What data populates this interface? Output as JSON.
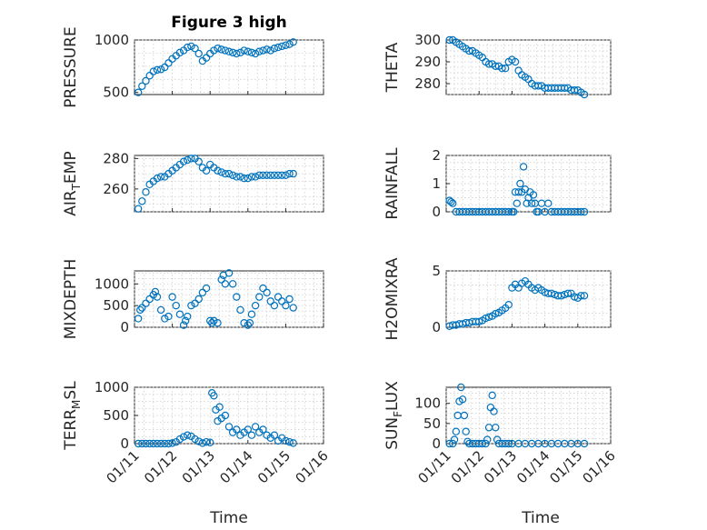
{
  "figure": {
    "title": "Figure 3 high",
    "marker_color": "#0072BD",
    "x_axis_label": "Time"
  },
  "chart_data": [
    {
      "type": "scatter",
      "ylabel": "PRESSURE",
      "ylim": [
        480,
        1000
      ],
      "yticks": [
        500,
        1000
      ],
      "xlim": [
        0,
        5
      ],
      "xticks": [
        "01/11",
        "01/12",
        "01/13",
        "01/14",
        "01/15",
        "01/16"
      ],
      "x": [
        0.1,
        0.2,
        0.3,
        0.4,
        0.5,
        0.6,
        0.7,
        0.8,
        0.9,
        1.0,
        1.1,
        1.2,
        1.3,
        1.4,
        1.5,
        1.6,
        1.7,
        1.8,
        1.9,
        2.0,
        2.1,
        2.2,
        2.3,
        2.4,
        2.5,
        2.6,
        2.7,
        2.8,
        2.9,
        3.0,
        3.1,
        3.2,
        3.3,
        3.4,
        3.5,
        3.6,
        3.7,
        3.8,
        3.9,
        4.0,
        4.1,
        4.2
      ],
      "y": [
        500,
        560,
        610,
        660,
        700,
        715,
        720,
        740,
        780,
        820,
        850,
        880,
        900,
        930,
        940,
        920,
        870,
        800,
        830,
        870,
        900,
        920,
        910,
        900,
        890,
        880,
        870,
        880,
        900,
        890,
        880,
        870,
        890,
        900,
        910,
        900,
        920,
        930,
        940,
        950,
        960,
        980
      ]
    },
    {
      "type": "scatter",
      "ylabel": "THETA",
      "ylim": [
        275,
        300
      ],
      "yticks": [
        280,
        290,
        300
      ],
      "xlim": [
        0,
        5
      ],
      "xticks": [
        "01/11",
        "01/12",
        "01/13",
        "01/14",
        "01/15",
        "01/16"
      ],
      "x": [
        0.1,
        0.2,
        0.3,
        0.4,
        0.5,
        0.6,
        0.7,
        0.8,
        0.9,
        1.0,
        1.1,
        1.2,
        1.3,
        1.4,
        1.5,
        1.6,
        1.7,
        1.8,
        1.9,
        2.0,
        2.1,
        2.2,
        2.3,
        2.4,
        2.5,
        2.6,
        2.7,
        2.8,
        2.9,
        3.0,
        3.1,
        3.2,
        3.3,
        3.4,
        3.5,
        3.6,
        3.7,
        3.8,
        3.9,
        4.0,
        4.1,
        4.2
      ],
      "y": [
        300,
        300,
        299,
        298,
        297,
        296,
        295,
        295,
        294,
        293,
        292,
        290,
        289,
        289,
        288,
        288,
        287,
        287,
        290,
        291,
        290,
        286,
        284,
        283,
        282,
        280,
        279,
        279,
        279,
        278,
        278,
        278,
        278,
        278,
        278,
        278,
        278,
        277,
        277,
        277,
        276,
        275
      ]
    },
    {
      "type": "scatter",
      "ylabel": "AIR_TEMP",
      "ylim": [
        245,
        282
      ],
      "yticks": [
        260,
        280
      ],
      "xlim": [
        0,
        5
      ],
      "xticks": [
        "01/11",
        "01/12",
        "01/13",
        "01/14",
        "01/15",
        "01/16"
      ],
      "x": [
        0.1,
        0.2,
        0.3,
        0.4,
        0.5,
        0.6,
        0.7,
        0.8,
        0.9,
        1.0,
        1.1,
        1.2,
        1.3,
        1.4,
        1.5,
        1.6,
        1.7,
        1.8,
        1.9,
        2.0,
        2.1,
        2.2,
        2.3,
        2.4,
        2.5,
        2.6,
        2.7,
        2.8,
        2.9,
        3.0,
        3.1,
        3.2,
        3.3,
        3.4,
        3.5,
        3.6,
        3.7,
        3.8,
        3.9,
        4.0,
        4.1,
        4.2
      ],
      "y": [
        247,
        252,
        258,
        263,
        265,
        267,
        268,
        268,
        270,
        272,
        274,
        276,
        278,
        279,
        280,
        280,
        278,
        274,
        272,
        276,
        274,
        272,
        271,
        270,
        270,
        269,
        268,
        268,
        267,
        267,
        268,
        268,
        269,
        269,
        269,
        269,
        269,
        269,
        269,
        269,
        270,
        270
      ]
    },
    {
      "type": "scatter",
      "ylabel": "RAINFALL",
      "ylim": [
        0,
        2
      ],
      "yticks": [
        0,
        1,
        2
      ],
      "xlim": [
        0,
        5
      ],
      "xticks": [
        "01/11",
        "01/12",
        "01/13",
        "01/14",
        "01/15",
        "01/16"
      ],
      "x": [
        0.1,
        0.15,
        0.2,
        0.3,
        0.4,
        0.5,
        0.6,
        0.7,
        0.8,
        0.9,
        1.0,
        1.1,
        1.2,
        1.3,
        1.4,
        1.5,
        1.6,
        1.7,
        1.8,
        1.9,
        2.0,
        2.05,
        2.1,
        2.15,
        2.2,
        2.25,
        2.3,
        2.35,
        2.4,
        2.45,
        2.5,
        2.55,
        2.6,
        2.65,
        2.7,
        2.75,
        2.8,
        2.9,
        3.0,
        3.1,
        3.2,
        3.3,
        3.4,
        3.5,
        3.6,
        3.7,
        3.8,
        3.9,
        4.0,
        4.1,
        4.2
      ],
      "y": [
        0.4,
        0.35,
        0.3,
        0,
        0,
        0,
        0,
        0,
        0,
        0,
        0,
        0,
        0,
        0,
        0,
        0,
        0,
        0,
        0,
        0,
        0,
        0,
        0.7,
        0.3,
        0.7,
        1.0,
        0.7,
        1.6,
        0.8,
        0.3,
        0.5,
        0.7,
        0.3,
        0.6,
        0.3,
        0,
        0,
        0.3,
        0,
        0.3,
        0,
        0,
        0,
        0,
        0,
        0,
        0,
        0,
        0,
        0,
        0
      ]
    },
    {
      "type": "scatter",
      "ylabel": "MIXDEPTH",
      "ylim": [
        0,
        1300
      ],
      "yticks": [
        0,
        500,
        1000
      ],
      "xlim": [
        0,
        5
      ],
      "xticks": [
        "01/11",
        "01/12",
        "01/13",
        "01/14",
        "01/15",
        "01/16"
      ],
      "x": [
        0.1,
        0.15,
        0.2,
        0.3,
        0.4,
        0.5,
        0.55,
        0.6,
        0.7,
        0.8,
        0.9,
        1.0,
        1.1,
        1.2,
        1.3,
        1.35,
        1.4,
        1.5,
        1.6,
        1.7,
        1.8,
        1.9,
        2.0,
        2.05,
        2.1,
        2.2,
        2.3,
        2.35,
        2.4,
        2.5,
        2.6,
        2.7,
        2.8,
        2.9,
        3.0,
        3.05,
        3.1,
        3.2,
        3.3,
        3.4,
        3.5,
        3.6,
        3.7,
        3.8,
        3.9,
        4.0,
        4.1,
        4.2
      ],
      "y": [
        200,
        400,
        450,
        550,
        650,
        750,
        820,
        700,
        400,
        200,
        250,
        700,
        500,
        300,
        50,
        150,
        250,
        500,
        550,
        650,
        800,
        900,
        150,
        100,
        150,
        100,
        1100,
        1200,
        1000,
        1250,
        1000,
        700,
        400,
        100,
        50,
        100,
        300,
        500,
        700,
        900,
        800,
        600,
        500,
        700,
        600,
        500,
        650,
        450
      ]
    },
    {
      "type": "scatter",
      "ylabel": "H2OMIXRA",
      "ylim": [
        0,
        5
      ],
      "yticks": [
        0,
        5
      ],
      "xlim": [
        0,
        5
      ],
      "xticks": [
        "01/11",
        "01/12",
        "01/13",
        "01/14",
        "01/15",
        "01/16"
      ],
      "x": [
        0.1,
        0.2,
        0.3,
        0.4,
        0.5,
        0.6,
        0.7,
        0.8,
        0.9,
        1.0,
        1.1,
        1.2,
        1.3,
        1.4,
        1.5,
        1.6,
        1.7,
        1.8,
        1.9,
        2.0,
        2.1,
        2.2,
        2.3,
        2.4,
        2.5,
        2.6,
        2.7,
        2.8,
        2.9,
        3.0,
        3.1,
        3.2,
        3.3,
        3.4,
        3.5,
        3.6,
        3.7,
        3.8,
        3.9,
        4.0,
        4.1,
        4.2
      ],
      "y": [
        0.1,
        0.2,
        0.2,
        0.3,
        0.3,
        0.4,
        0.4,
        0.5,
        0.5,
        0.5,
        0.6,
        0.8,
        0.9,
        1.0,
        1.2,
        1.3,
        1.5,
        1.7,
        2.0,
        3.5,
        3.8,
        3.5,
        3.9,
        4.1,
        3.8,
        3.5,
        3.3,
        3.5,
        3.3,
        3.1,
        3.0,
        3.0,
        2.9,
        2.8,
        2.8,
        2.9,
        3.0,
        3.0,
        2.7,
        2.6,
        2.8,
        2.8
      ]
    },
    {
      "type": "scatter",
      "ylabel": "TERR_MSL",
      "ylim": [
        0,
        1000
      ],
      "yticks": [
        0,
        500,
        1000
      ],
      "xlim": [
        0,
        5
      ],
      "xticks": [
        "01/11",
        "01/12",
        "01/13",
        "01/14",
        "01/15",
        "01/16"
      ],
      "x": [
        0.1,
        0.2,
        0.3,
        0.4,
        0.5,
        0.6,
        0.7,
        0.8,
        0.9,
        1.0,
        1.1,
        1.2,
        1.3,
        1.4,
        1.5,
        1.6,
        1.7,
        1.8,
        1.9,
        2.0,
        2.05,
        2.1,
        2.15,
        2.2,
        2.25,
        2.3,
        2.4,
        2.5,
        2.6,
        2.7,
        2.8,
        2.9,
        3.0,
        3.1,
        3.2,
        3.3,
        3.4,
        3.5,
        3.6,
        3.7,
        3.8,
        3.9,
        4.0,
        4.1,
        4.2
      ],
      "y": [
        0,
        0,
        0,
        0,
        0,
        0,
        0,
        0,
        0,
        10,
        30,
        80,
        120,
        150,
        130,
        80,
        40,
        10,
        30,
        20,
        900,
        850,
        600,
        400,
        650,
        450,
        500,
        300,
        200,
        250,
        150,
        200,
        250,
        150,
        300,
        200,
        250,
        150,
        100,
        150,
        50,
        100,
        50,
        30,
        10
      ]
    },
    {
      "type": "scatter",
      "ylabel": "SUN_FLUX",
      "ylim": [
        0,
        140
      ],
      "yticks": [
        0,
        50,
        100
      ],
      "xlim": [
        0,
        5
      ],
      "xticks": [
        "01/11",
        "01/12",
        "01/13",
        "01/14",
        "01/15",
        "01/16"
      ],
      "x": [
        0.1,
        0.2,
        0.25,
        0.3,
        0.35,
        0.4,
        0.45,
        0.5,
        0.55,
        0.6,
        0.65,
        0.7,
        0.8,
        0.9,
        1.0,
        1.1,
        1.2,
        1.25,
        1.3,
        1.35,
        1.4,
        1.45,
        1.5,
        1.55,
        1.6,
        1.7,
        1.8,
        1.9,
        2.0,
        2.2,
        2.4,
        2.6,
        2.8,
        3.0,
        3.2,
        3.4,
        3.6,
        3.8,
        4.0,
        4.2
      ],
      "y": [
        0,
        0,
        10,
        30,
        70,
        105,
        140,
        110,
        70,
        30,
        5,
        0,
        0,
        0,
        0,
        0,
        0,
        10,
        40,
        90,
        120,
        80,
        40,
        10,
        0,
        0,
        0,
        0,
        0,
        0,
        0,
        0,
        0,
        0,
        0,
        0,
        0,
        0,
        0,
        0
      ]
    }
  ]
}
